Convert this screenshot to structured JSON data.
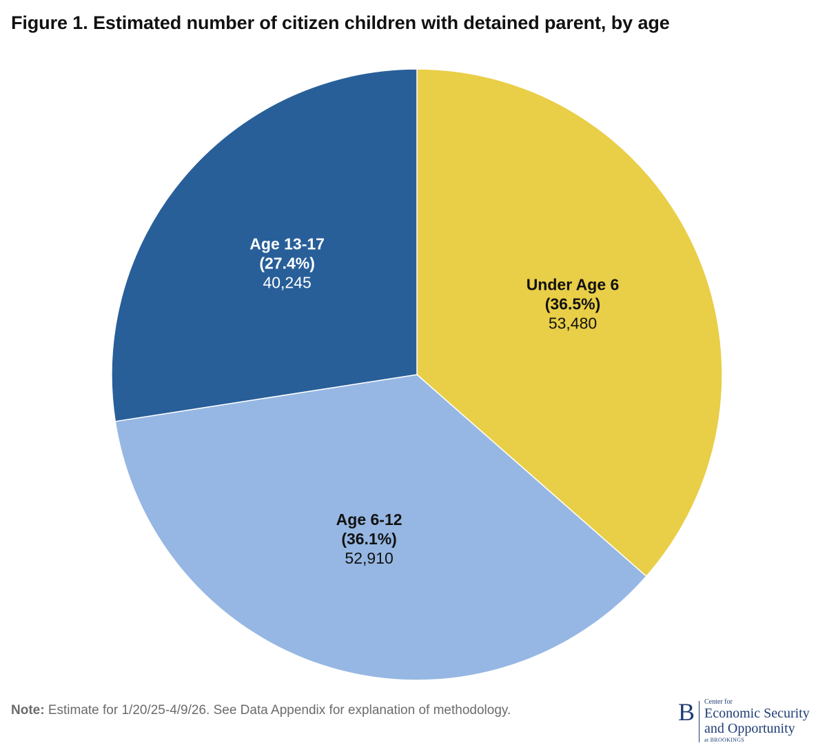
{
  "title": "Figure 1. Estimated number of citizen children with detained parent, by age",
  "chart_data": {
    "type": "pie",
    "slices": [
      {
        "label": "Under Age 6",
        "percent_label": "(36.5%)",
        "value": 53480,
        "value_label": "53,480",
        "color": "#E9CE47",
        "text_color": "#111111"
      },
      {
        "label": "Age 6-12",
        "percent_label": "(36.1%)",
        "value": 52910,
        "value_label": "52,910",
        "color": "#96B7E3",
        "text_color": "#111111"
      },
      {
        "label": "Age 13-17",
        "percent_label": "(27.4%)",
        "value": 40245,
        "value_label": "40,245",
        "color": "#285F99",
        "text_color": "#FFFFFF"
      }
    ],
    "start": "12 o'clock",
    "direction": "clockwise"
  },
  "note": {
    "key": "Note:",
    "text": " Estimate for 1/20/25-4/9/26. See Data Appendix for explanation of methodology."
  },
  "logo": {
    "small_top": "Center for",
    "line1": "Economic Security",
    "line2": "and Opportunity",
    "bottom": "at BROOKINGS"
  }
}
